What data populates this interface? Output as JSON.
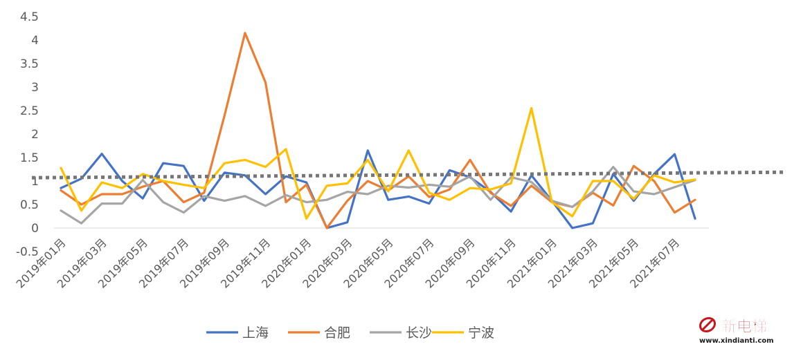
{
  "chart_data": {
    "type": "line",
    "title": "",
    "xlabel": "",
    "ylabel": "",
    "ylim": [
      -0.5,
      4.5
    ],
    "yticks": [
      -0.5,
      0,
      0.5,
      1,
      1.5,
      2,
      2.5,
      3,
      3.5,
      4,
      4.5
    ],
    "ytick_labels": [
      "-0.5",
      "0",
      "0.5",
      "1",
      "1.5",
      "2",
      "2.5",
      "3",
      "3.5",
      "4",
      "4.5"
    ],
    "categories": [
      "2019年01月",
      "2019年02月",
      "2019年03月",
      "2019年04月",
      "2019年05月",
      "2019年06月",
      "2019年07月",
      "2019年08月",
      "2019年09月",
      "2019年10月",
      "2019年11月",
      "2019年12月",
      "2020年01月",
      "2020年02月",
      "2020年03月",
      "2020年04月",
      "2020年05月",
      "2020年06月",
      "2020年07月",
      "2020年08月",
      "2020年09月",
      "2020年10月",
      "2020年11月",
      "2020年12月",
      "2021年01月",
      "2021年02月",
      "2021年03月",
      "2021年04月",
      "2021年05月",
      "2021年06月",
      "2021年07月",
      "2021年08月"
    ],
    "xtick_labels_shown": [
      "2019年01月",
      "2019年03月",
      "2019年05月",
      "2019年07月",
      "2019年09月",
      "2019年11月",
      "2020年01月",
      "2020年03月",
      "2020年05月",
      "2020年07月",
      "2020年09月",
      "2020年11月",
      "2021年01月",
      "2021年03月",
      "2021年05月",
      "2021年07月"
    ],
    "series": [
      {
        "name": "上海",
        "color": "#4472C4",
        "values": [
          0.85,
          1.05,
          1.58,
          1.0,
          0.63,
          1.38,
          1.32,
          0.58,
          1.18,
          1.12,
          0.72,
          1.1,
          0.97,
          0.0,
          0.12,
          1.65,
          0.6,
          0.67,
          0.52,
          1.23,
          1.08,
          0.77,
          0.35,
          1.12,
          0.58,
          0.0,
          0.1,
          1.15,
          0.58,
          1.15,
          1.57,
          0.2
        ]
      },
      {
        "name": "合肥",
        "color": "#ED7D31",
        "values": [
          0.8,
          0.5,
          0.72,
          0.72,
          0.88,
          1.0,
          0.55,
          0.75,
          2.4,
          4.15,
          3.1,
          0.55,
          0.92,
          0.0,
          0.58,
          1.0,
          0.8,
          1.1,
          0.66,
          0.82,
          1.45,
          0.75,
          0.47,
          0.9,
          0.55,
          0.45,
          0.75,
          0.48,
          1.32,
          1.0,
          0.33,
          0.6
        ]
      },
      {
        "name": "长沙",
        "color": "#A5A5A5",
        "values": [
          0.37,
          0.1,
          0.52,
          0.52,
          1.02,
          0.55,
          0.33,
          0.68,
          0.58,
          0.68,
          0.47,
          0.7,
          0.55,
          0.6,
          0.77,
          0.72,
          0.9,
          0.86,
          0.92,
          0.88,
          1.1,
          0.6,
          1.08,
          0.98,
          0.58,
          0.45,
          0.78,
          1.3,
          0.78,
          0.72,
          0.87,
          1.02
        ]
      },
      {
        "name": "宁波",
        "color": "#FFC000",
        "values": [
          1.28,
          0.37,
          0.97,
          0.85,
          1.15,
          1.0,
          0.92,
          0.85,
          1.38,
          1.45,
          1.3,
          1.68,
          0.2,
          0.9,
          0.95,
          1.45,
          0.78,
          1.65,
          0.75,
          0.6,
          0.85,
          0.82,
          0.95,
          2.55,
          0.55,
          0.25,
          1.0,
          1.0,
          0.62,
          1.12,
          0.97,
          1.03
        ]
      }
    ],
    "reference_line": {
      "style": "dotted",
      "color": "#767676",
      "value": 1.07
    },
    "legend_position": "bottom",
    "grid": false
  },
  "watermark": {
    "logo_text": "新电梯",
    "url_text": "www.xindianti.com",
    "color": "#c8161d"
  }
}
